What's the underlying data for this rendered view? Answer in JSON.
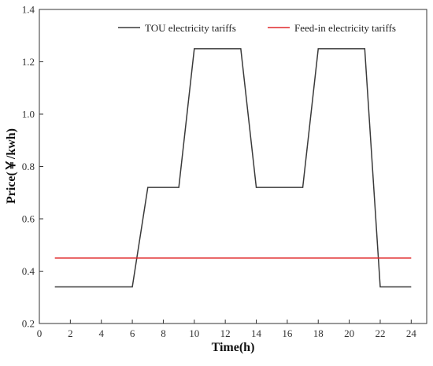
{
  "chart_data": {
    "type": "line",
    "xlabel": "Time(h)",
    "ylabel": "Price(￥/kwh)",
    "xlim": [
      0,
      25
    ],
    "ylim": [
      0.2,
      1.4
    ],
    "xticks": [
      0,
      2,
      4,
      6,
      8,
      10,
      12,
      14,
      16,
      18,
      20,
      22,
      24
    ],
    "yticks": [
      0.2,
      0.4,
      0.6,
      0.8,
      1.0,
      1.2,
      1.4
    ],
    "ytick_labels": [
      "0.2",
      "0.4",
      "0.6",
      "0.8",
      "1.0",
      "1.2",
      "1.4"
    ],
    "grid": false,
    "legend_position": "top",
    "series": [
      {
        "name": "TOU electricity tariffs",
        "color": "#3a3a3a",
        "x": [
          1,
          6,
          7,
          9,
          10,
          13,
          14,
          17,
          18,
          21,
          22,
          24
        ],
        "y": [
          0.34,
          0.34,
          0.72,
          0.72,
          1.25,
          1.25,
          0.72,
          0.72,
          1.25,
          1.25,
          0.34,
          0.34
        ]
      },
      {
        "name": "Feed-in electricity tariffs",
        "color": "#e0292b",
        "x": [
          1,
          24
        ],
        "y": [
          0.45,
          0.45
        ]
      }
    ]
  }
}
